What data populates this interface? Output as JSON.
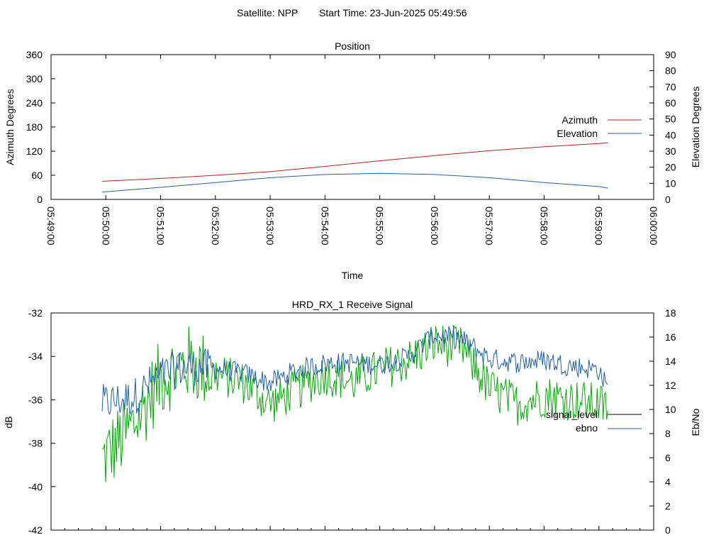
{
  "header": {
    "satellite": "Satellite: NPP",
    "start_time": "Start Time: 23-Jun-2025 05:49:56"
  },
  "colors": {
    "azimuth": "#b22222",
    "elevation": "#1f5fa8",
    "signal_level": "#000000",
    "ebno": "#1f5fa8",
    "signal_green": "#00aa00"
  },
  "chart_data": [
    {
      "type": "line",
      "title": "Position",
      "xlabel": "Time",
      "ylabel": "Azimuth Degrees",
      "y2label": "Elevation Degrees",
      "xlim": [
        "05:49:00",
        "06:00:00"
      ],
      "x_ticks": [
        "05:49:00",
        "05:50:00",
        "05:51:00",
        "05:52:00",
        "05:53:00",
        "05:54:00",
        "05:55:00",
        "05:56:00",
        "05:57:00",
        "05:58:00",
        "05:59:00",
        "06:00:00"
      ],
      "ylim": [
        0,
        360
      ],
      "y_ticks": [
        0,
        60,
        120,
        180,
        240,
        300,
        360
      ],
      "y2lim": [
        0,
        90
      ],
      "y2_ticks": [
        0,
        10,
        20,
        30,
        40,
        50,
        60,
        70,
        80,
        90
      ],
      "legend_position": "right",
      "x": [
        "05:49:56",
        "05:51:00",
        "05:52:00",
        "05:53:00",
        "05:54:00",
        "05:55:00",
        "05:56:00",
        "05:57:00",
        "05:58:00",
        "05:59:00",
        "05:59:10"
      ],
      "series": [
        {
          "name": "Azimuth",
          "axis": "left",
          "values": [
            45,
            52,
            60,
            69,
            82,
            96,
            109,
            121,
            131,
            139,
            141
          ]
        },
        {
          "name": "Elevation",
          "axis": "right",
          "values": [
            4.6,
            7.5,
            10.5,
            13.5,
            15.5,
            16.2,
            15.5,
            13.5,
            10.5,
            8.0,
            7.0
          ]
        }
      ]
    },
    {
      "type": "line",
      "title": "HRD_RX_1 Receive Signal",
      "ylabel": "dB",
      "y2label": "Eb/No",
      "ylim": [
        -42,
        -32
      ],
      "y_ticks": [
        -42,
        -40,
        -38,
        -36,
        -34,
        -32
      ],
      "y2lim": [
        0,
        18
      ],
      "y2_ticks": [
        0,
        2,
        4,
        6,
        8,
        10,
        12,
        14,
        16,
        18
      ],
      "legend_position": "right",
      "x": [
        "05:49:56",
        "05:50:30",
        "05:51:00",
        "05:51:30",
        "05:52:00",
        "05:52:30",
        "05:53:00",
        "05:53:30",
        "05:54:00",
        "05:54:30",
        "05:55:00",
        "05:55:30",
        "05:56:00",
        "05:56:30",
        "05:57:00",
        "05:57:30",
        "05:58:00",
        "05:58:30",
        "05:59:00",
        "05:59:10"
      ],
      "series": [
        {
          "name": "signal_level",
          "axis": "left",
          "values": [
            -38.8,
            -37.2,
            -35.0,
            -34.3,
            -34.8,
            -35.2,
            -36.2,
            -35.5,
            -34.8,
            -35.2,
            -34.6,
            -34.2,
            -33.4,
            -33.6,
            -35.5,
            -36.2,
            -35.8,
            -36.0,
            -36.2,
            -36.4
          ]
        },
        {
          "name": "ebno",
          "axis": "right",
          "values": [
            10.5,
            11.0,
            12.8,
            13.6,
            13.4,
            13.0,
            12.2,
            13.3,
            13.8,
            13.9,
            13.7,
            14.3,
            16.2,
            15.8,
            14.2,
            13.9,
            14.1,
            13.6,
            13.3,
            11.6
          ]
        }
      ]
    }
  ]
}
